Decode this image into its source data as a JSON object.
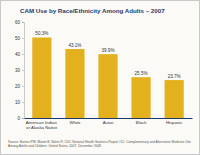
{
  "chart_data": {
    "type": "bar",
    "title": "CAM Use by Race/Ethnicity Among Adults – 2007",
    "categories": [
      "American Indian or Alaska Native",
      "White",
      "Asian",
      "Black",
      "Hispanic"
    ],
    "values": [
      50.3,
      43.1,
      39.9,
      25.5,
      23.7
    ],
    "value_labels": [
      "50.3%",
      "43.1%",
      "39.9%",
      "25.5%",
      "23.7%"
    ],
    "color": "#e3b11e",
    "ylim": [
      0,
      60
    ],
    "yticks": [
      0,
      10,
      20,
      30,
      40,
      50,
      60
    ],
    "grid": false,
    "data_labels": true,
    "annotations": [
      "Source: Barnes PM, Bloom B, Nahin R. CDC National Health Statistics Report #12. Complementary and Alternative Medicine Use Among Adults and Children: United States, 2007. December 2008."
    ]
  }
}
